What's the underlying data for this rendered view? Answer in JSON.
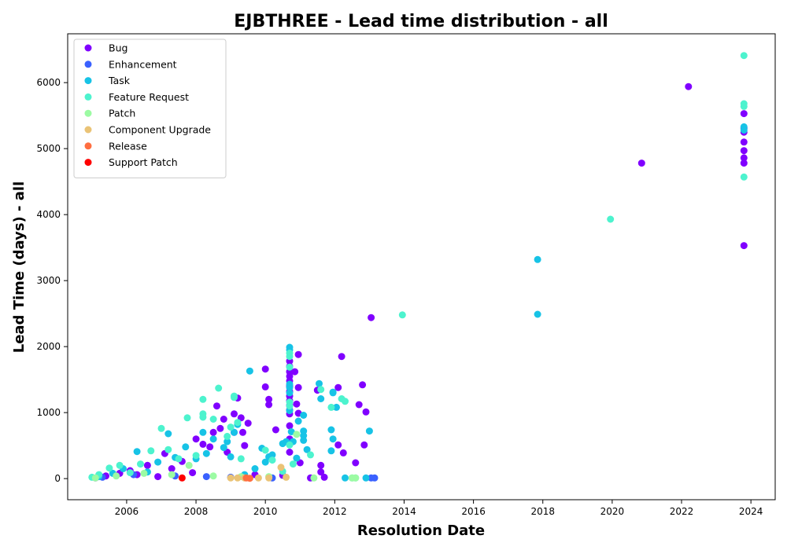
{
  "chart_data": {
    "type": "scatter",
    "title": "EJBTHREE - Lead time distribution - all",
    "xlabel": "Resolution Date",
    "ylabel": "Lead Time (days) - all",
    "xlim": [
      2004.3,
      2024.7
    ],
    "ylim": [
      -320,
      6740
    ],
    "xticks": [
      2006,
      2008,
      2010,
      2012,
      2014,
      2016,
      2018,
      2020,
      2022,
      2024
    ],
    "yticks": [
      0,
      1000,
      2000,
      3000,
      4000,
      5000,
      6000
    ],
    "legend_position": "top-left",
    "grid": false,
    "series": [
      {
        "name": "Bug",
        "color": "#8000ff",
        "points": [
          [
            2005.1,
            10
          ],
          [
            2005.4,
            40
          ],
          [
            2005.8,
            80
          ],
          [
            2006.1,
            120
          ],
          [
            2006.3,
            60
          ],
          [
            2006.6,
            200
          ],
          [
            2006.9,
            30
          ],
          [
            2007.1,
            380
          ],
          [
            2007.3,
            150
          ],
          [
            2007.6,
            260
          ],
          [
            2007.9,
            90
          ],
          [
            2008.0,
            600
          ],
          [
            2008.2,
            520
          ],
          [
            2008.4,
            480
          ],
          [
            2008.5,
            700
          ],
          [
            2008.6,
            1100
          ],
          [
            2008.7,
            760
          ],
          [
            2008.8,
            900
          ],
          [
            2008.9,
            400
          ],
          [
            2009.1,
            980
          ],
          [
            2009.1,
            700
          ],
          [
            2009.2,
            1220
          ],
          [
            2009.3,
            920
          ],
          [
            2009.35,
            700
          ],
          [
            2009.4,
            500
          ],
          [
            2009.5,
            840
          ],
          [
            2009.7,
            60
          ],
          [
            2010.0,
            1660
          ],
          [
            2010.0,
            1390
          ],
          [
            2010.1,
            1200
          ],
          [
            2010.1,
            1120
          ],
          [
            2010.3,
            740
          ],
          [
            2010.5,
            50
          ],
          [
            2010.7,
            1780
          ],
          [
            2010.7,
            1700
          ],
          [
            2010.7,
            1620
          ],
          [
            2010.7,
            1550
          ],
          [
            2010.7,
            1480
          ],
          [
            2010.7,
            1400
          ],
          [
            2010.7,
            1320
          ],
          [
            2010.7,
            1250
          ],
          [
            2010.7,
            1180
          ],
          [
            2010.7,
            1110
          ],
          [
            2010.7,
            1040
          ],
          [
            2010.7,
            980
          ],
          [
            2010.7,
            800
          ],
          [
            2010.7,
            600
          ],
          [
            2010.7,
            400
          ],
          [
            2010.85,
            1620
          ],
          [
            2010.9,
            1130
          ],
          [
            2010.95,
            1880
          ],
          [
            2010.95,
            1380
          ],
          [
            2010.95,
            990
          ],
          [
            2011.0,
            240
          ],
          [
            2011.3,
            10
          ],
          [
            2011.5,
            1340
          ],
          [
            2011.6,
            200
          ],
          [
            2011.6,
            100
          ],
          [
            2011.7,
            20
          ],
          [
            2012.1,
            1380
          ],
          [
            2012.1,
            510
          ],
          [
            2012.2,
            1850
          ],
          [
            2012.25,
            390
          ],
          [
            2012.6,
            240
          ],
          [
            2012.7,
            1120
          ],
          [
            2012.8,
            1420
          ],
          [
            2012.85,
            510
          ],
          [
            2012.9,
            1010
          ],
          [
            2013.05,
            2440
          ],
          [
            2020.85,
            4780
          ],
          [
            2022.2,
            5940
          ],
          [
            2023.8,
            5530
          ],
          [
            2023.8,
            5310
          ],
          [
            2023.8,
            5250
          ],
          [
            2023.8,
            5100
          ],
          [
            2023.8,
            4970
          ],
          [
            2023.8,
            4860
          ],
          [
            2023.8,
            4780
          ],
          [
            2023.8,
            3530
          ]
        ]
      },
      {
        "name": "Enhancement",
        "color": "#3a61ff",
        "points": [
          [
            2005.3,
            20
          ],
          [
            2006.2,
            60
          ],
          [
            2007.4,
            40
          ],
          [
            2008.3,
            30
          ],
          [
            2009.0,
            20
          ],
          [
            2010.2,
            10
          ],
          [
            2013.05,
            10
          ],
          [
            2013.15,
            10
          ]
        ]
      },
      {
        "name": "Task",
        "color": "#17c3e6",
        "points": [
          [
            2005.2,
            30
          ],
          [
            2005.6,
            80
          ],
          [
            2005.9,
            150
          ],
          [
            2006.3,
            410
          ],
          [
            2006.6,
            100
          ],
          [
            2006.9,
            250
          ],
          [
            2007.2,
            680
          ],
          [
            2007.4,
            320
          ],
          [
            2007.7,
            480
          ],
          [
            2008.0,
            300
          ],
          [
            2008.2,
            700
          ],
          [
            2008.3,
            380
          ],
          [
            2008.5,
            600
          ],
          [
            2008.8,
            470
          ],
          [
            2008.9,
            560
          ],
          [
            2009.0,
            330
          ],
          [
            2009.1,
            700
          ],
          [
            2009.2,
            820
          ],
          [
            2009.4,
            60
          ],
          [
            2009.55,
            1630
          ],
          [
            2009.7,
            150
          ],
          [
            2009.9,
            460
          ],
          [
            2010.0,
            250
          ],
          [
            2010.1,
            330
          ],
          [
            2010.2,
            360
          ],
          [
            2010.5,
            530
          ],
          [
            2010.6,
            560
          ],
          [
            2010.7,
            1990
          ],
          [
            2010.7,
            1950
          ],
          [
            2010.7,
            1430
          ],
          [
            2010.7,
            1380
          ],
          [
            2010.7,
            1300
          ],
          [
            2010.7,
            1030
          ],
          [
            2010.75,
            710
          ],
          [
            2010.8,
            560
          ],
          [
            2010.9,
            310
          ],
          [
            2010.95,
            870
          ],
          [
            2011.1,
            960
          ],
          [
            2011.1,
            720
          ],
          [
            2011.1,
            650
          ],
          [
            2011.1,
            580
          ],
          [
            2011.2,
            440
          ],
          [
            2011.55,
            1440
          ],
          [
            2011.6,
            1210
          ],
          [
            2011.9,
            740
          ],
          [
            2011.95,
            1310
          ],
          [
            2011.95,
            1300
          ],
          [
            2011.95,
            600
          ],
          [
            2011.9,
            420
          ],
          [
            2012.05,
            1080
          ],
          [
            2012.3,
            10
          ],
          [
            2012.9,
            10
          ],
          [
            2013.0,
            720
          ],
          [
            2017.85,
            3320
          ],
          [
            2017.85,
            2490
          ],
          [
            2023.8,
            5330
          ],
          [
            2023.8,
            5280
          ]
        ]
      },
      {
        "name": "Feature Request",
        "color": "#4df3ce",
        "points": [
          [
            2005.0,
            20
          ],
          [
            2005.2,
            60
          ],
          [
            2005.5,
            160
          ],
          [
            2005.8,
            200
          ],
          [
            2006.1,
            90
          ],
          [
            2006.4,
            220
          ],
          [
            2006.7,
            420
          ],
          [
            2007.0,
            760
          ],
          [
            2007.2,
            440
          ],
          [
            2007.5,
            300
          ],
          [
            2007.75,
            920
          ],
          [
            2008.0,
            350
          ],
          [
            2008.2,
            1200
          ],
          [
            2008.2,
            980
          ],
          [
            2008.2,
            930
          ],
          [
            2008.5,
            900
          ],
          [
            2008.65,
            1370
          ],
          [
            2008.9,
            640
          ],
          [
            2009.0,
            780
          ],
          [
            2009.1,
            1250
          ],
          [
            2009.1,
            1230
          ],
          [
            2009.2,
            850
          ],
          [
            2009.3,
            300
          ],
          [
            2010.0,
            430
          ],
          [
            2010.2,
            280
          ],
          [
            2010.5,
            110
          ],
          [
            2010.7,
            1900
          ],
          [
            2010.7,
            1850
          ],
          [
            2010.7,
            1690
          ],
          [
            2010.7,
            1160
          ],
          [
            2010.7,
            1100
          ],
          [
            2010.7,
            510
          ],
          [
            2010.8,
            220
          ],
          [
            2011.3,
            360
          ],
          [
            2011.6,
            1350
          ],
          [
            2011.9,
            1080
          ],
          [
            2012.2,
            1210
          ],
          [
            2012.3,
            1170
          ],
          [
            2012.5,
            10
          ],
          [
            2012.6,
            10
          ],
          [
            2013.95,
            2480
          ],
          [
            2019.95,
            3930
          ],
          [
            2023.8,
            6410
          ],
          [
            2023.8,
            5680
          ],
          [
            2023.8,
            5640
          ],
          [
            2023.8,
            4570
          ]
        ]
      },
      {
        "name": "Patch",
        "color": "#9cfba3",
        "points": [
          [
            2005.1,
            10
          ],
          [
            2005.7,
            40
          ],
          [
            2006.5,
            80
          ],
          [
            2007.3,
            60
          ],
          [
            2007.8,
            200
          ],
          [
            2008.5,
            40
          ],
          [
            2009.3,
            30
          ],
          [
            2010.1,
            30
          ],
          [
            2010.9,
            670
          ],
          [
            2011.4,
            10
          ],
          [
            2012.5,
            10
          ],
          [
            2012.6,
            10
          ]
        ]
      },
      {
        "name": "Component Upgrade",
        "color": "#eac376",
        "points": [
          [
            2009.0,
            10
          ],
          [
            2009.2,
            10
          ],
          [
            2009.4,
            10
          ],
          [
            2009.8,
            10
          ],
          [
            2010.1,
            10
          ],
          [
            2010.45,
            170
          ],
          [
            2010.6,
            20
          ]
        ]
      },
      {
        "name": "Release",
        "color": "#ff6e40",
        "points": [
          [
            2009.45,
            10
          ],
          [
            2009.55,
            5
          ]
        ]
      },
      {
        "name": "Support Patch",
        "color": "#ff0000",
        "points": [
          [
            2007.6,
            10
          ]
        ]
      }
    ]
  }
}
